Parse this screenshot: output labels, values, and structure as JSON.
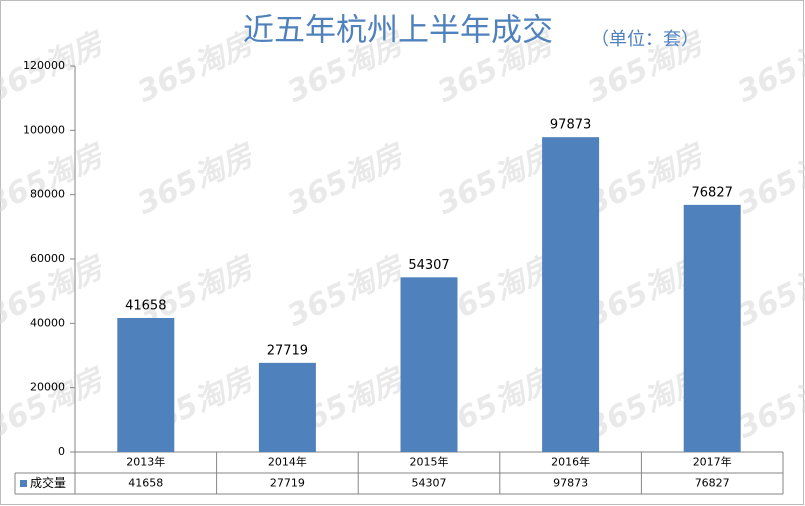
{
  "chart_data": {
    "type": "bar",
    "title": "近五年杭州上半年成交",
    "subtitle": "（单位：套）",
    "watermark": "365淘房",
    "categories": [
      "2013年",
      "2014年",
      "2015年",
      "2016年",
      "2017年"
    ],
    "series": [
      {
        "name": "成交量",
        "color": "#4f81bd",
        "values": [
          41658,
          27719,
          54307,
          97873,
          76827
        ]
      }
    ],
    "ylim": [
      0,
      120000
    ],
    "yticks": [
      0,
      20000,
      40000,
      60000,
      80000,
      100000,
      120000
    ],
    "grid": false
  }
}
